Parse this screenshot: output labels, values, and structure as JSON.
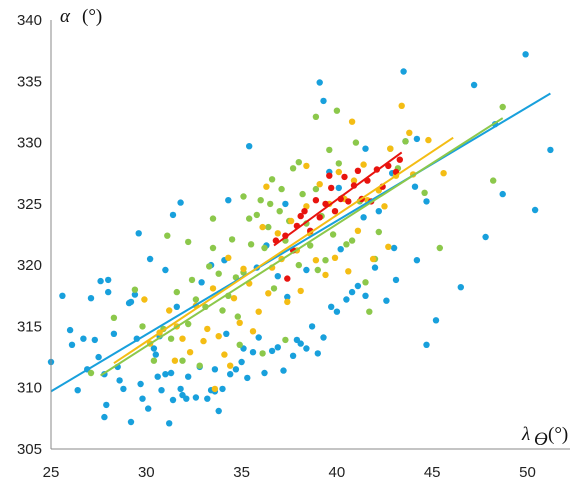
{
  "chart_data": {
    "type": "scatter",
    "title": "",
    "xlabel": "λ",
    "xlabel_sub": "ϴ",
    "xlabel_unit": "(°)",
    "ylabel": "α",
    "ylabel_unit": "(°)",
    "xlim": [
      25,
      52
    ],
    "ylim": [
      305,
      340
    ],
    "x_ticks": [
      "25",
      "30",
      "35",
      "40",
      "45",
      "50"
    ],
    "y_ticks": [
      "305",
      "310",
      "315",
      "320",
      "325",
      "330",
      "335",
      "340"
    ],
    "grid": false,
    "legend": "none",
    "series": [
      {
        "color": "#18a0dc",
        "trend": [
          [
            25.0,
            309.7
          ],
          [
            51.2,
            334.0
          ]
        ],
        "points": [
          [
            25.0,
            312.1
          ],
          [
            25.6,
            317.5
          ],
          [
            26.0,
            314.7
          ],
          [
            26.4,
            309.8
          ],
          [
            26.9,
            311.5
          ],
          [
            27.1,
            317.3
          ],
          [
            27.5,
            312.5
          ],
          [
            27.6,
            318.7
          ],
          [
            27.8,
            311.1
          ],
          [
            27.8,
            307.6
          ],
          [
            27.9,
            308.6
          ],
          [
            28.0,
            318.8
          ],
          [
            28.0,
            317.8
          ],
          [
            28.3,
            314.4
          ],
          [
            28.5,
            311.7
          ],
          [
            28.6,
            310.6
          ],
          [
            28.8,
            309.9
          ],
          [
            29.1,
            316.9
          ],
          [
            29.2,
            317.0
          ],
          [
            29.4,
            317.6
          ],
          [
            29.5,
            314.0
          ],
          [
            29.7,
            310.3
          ],
          [
            29.8,
            309.1
          ],
          [
            30.1,
            308.3
          ],
          [
            30.4,
            313.2
          ],
          [
            30.5,
            312.7
          ],
          [
            30.7,
            314.2
          ],
          [
            30.8,
            309.8
          ],
          [
            31.0,
            311.1
          ],
          [
            31.3,
            311.2
          ],
          [
            31.4,
            309.0
          ],
          [
            31.6,
            316.6
          ],
          [
            31.8,
            309.9
          ],
          [
            31.9,
            309.4
          ],
          [
            32.1,
            309.1
          ],
          [
            32.2,
            310.9
          ],
          [
            32.6,
            309.2
          ],
          [
            32.8,
            311.7
          ],
          [
            33.2,
            309.1
          ],
          [
            33.4,
            309.8
          ],
          [
            33.6,
            311.5
          ],
          [
            33.8,
            308.1
          ],
          [
            34.0,
            309.9
          ],
          [
            34.2,
            314.4
          ],
          [
            34.4,
            311.1
          ],
          [
            34.7,
            311.5
          ],
          [
            35.0,
            312.1
          ],
          [
            35.1,
            313.2
          ],
          [
            35.3,
            310.8
          ],
          [
            35.6,
            312.9
          ],
          [
            35.9,
            314.1
          ],
          [
            36.2,
            311.2
          ],
          [
            36.6,
            313.0
          ],
          [
            36.9,
            313.3
          ],
          [
            37.2,
            311.4
          ],
          [
            37.4,
            317.4
          ],
          [
            37.7,
            312.6
          ],
          [
            37.9,
            313.9
          ],
          [
            38.1,
            313.6
          ],
          [
            38.4,
            313.2
          ],
          [
            38.7,
            315.0
          ],
          [
            39.0,
            312.8
          ],
          [
            39.3,
            314.1
          ],
          [
            39.7,
            316.6
          ],
          [
            40.0,
            316.2
          ],
          [
            40.5,
            317.2
          ],
          [
            40.8,
            317.8
          ],
          [
            41.1,
            318.3
          ],
          [
            41.5,
            317.5
          ],
          [
            42.0,
            319.8
          ],
          [
            42.6,
            317.1
          ],
          [
            43.1,
            318.8
          ],
          [
            44.2,
            320.4
          ],
          [
            47.8,
            322.3
          ],
          [
            49.9,
            337.2
          ],
          [
            50.4,
            324.5
          ],
          [
            51.2,
            329.4
          ],
          [
            34.3,
            325.3
          ],
          [
            35.4,
            329.7
          ],
          [
            37.3,
            325.0
          ],
          [
            39.3,
            333.4
          ],
          [
            39.6,
            327.6
          ],
          [
            40.1,
            326.3
          ],
          [
            41.5,
            329.5
          ],
          [
            42.9,
            327.5
          ],
          [
            43.6,
            330.1
          ],
          [
            44.2,
            330.3
          ],
          [
            44.1,
            326.4
          ],
          [
            44.7,
            325.2
          ],
          [
            29.6,
            322.6
          ],
          [
            30.2,
            320.5
          ],
          [
            31.0,
            319.6
          ],
          [
            31.4,
            324.1
          ],
          [
            31.8,
            325.1
          ],
          [
            32.9,
            318.6
          ],
          [
            33.4,
            320.0
          ],
          [
            34.1,
            320.4
          ],
          [
            39.1,
            334.9
          ],
          [
            43.5,
            335.8
          ],
          [
            47.2,
            334.7
          ],
          [
            48.3,
            331.5
          ],
          [
            26.1,
            313.5
          ],
          [
            26.7,
            314.0
          ],
          [
            27.3,
            313.9
          ],
          [
            29.2,
            307.2
          ],
          [
            30.6,
            310.9
          ],
          [
            31.2,
            307.1
          ],
          [
            33.6,
            309.7
          ],
          [
            35.8,
            319.8
          ],
          [
            36.3,
            321.6
          ],
          [
            36.9,
            319.1
          ],
          [
            38.4,
            319.6
          ],
          [
            40.2,
            321.3
          ],
          [
            41.4,
            323.9
          ],
          [
            42.2,
            324.4
          ],
          [
            43.0,
            321.4
          ],
          [
            44.7,
            313.5
          ],
          [
            45.2,
            315.5
          ],
          [
            46.5,
            318.2
          ],
          [
            48.7,
            325.8
          ]
        ]
      },
      {
        "color": "#8cc84b",
        "trend": [
          [
            27.6,
            311.0
          ],
          [
            48.7,
            332.0
          ]
        ],
        "points": [
          [
            27.1,
            311.2
          ],
          [
            28.3,
            315.7
          ],
          [
            29.4,
            318.0
          ],
          [
            29.8,
            315.0
          ],
          [
            30.4,
            312.2
          ],
          [
            30.9,
            314.8
          ],
          [
            31.3,
            314.0
          ],
          [
            31.6,
            317.8
          ],
          [
            31.9,
            312.2
          ],
          [
            32.2,
            315.2
          ],
          [
            32.4,
            318.8
          ],
          [
            32.6,
            317.2
          ],
          [
            32.8,
            311.8
          ],
          [
            33.1,
            316.6
          ],
          [
            33.3,
            319.9
          ],
          [
            33.5,
            321.4
          ],
          [
            33.8,
            319.3
          ],
          [
            34.0,
            316.3
          ],
          [
            34.3,
            317.5
          ],
          [
            34.5,
            322.1
          ],
          [
            34.7,
            319.0
          ],
          [
            34.9,
            313.5
          ],
          [
            35.1,
            319.4
          ],
          [
            35.4,
            323.8
          ],
          [
            35.5,
            321.7
          ],
          [
            35.8,
            324.1
          ],
          [
            36.0,
            325.3
          ],
          [
            36.2,
            321.4
          ],
          [
            36.4,
            323.1
          ],
          [
            36.5,
            325.0
          ],
          [
            36.7,
            318.1
          ],
          [
            37.0,
            324.4
          ],
          [
            37.1,
            326.2
          ],
          [
            37.3,
            322.0
          ],
          [
            37.5,
            323.6
          ],
          [
            37.7,
            327.9
          ],
          [
            38.0,
            320.0
          ],
          [
            38.2,
            325.8
          ],
          [
            38.4,
            323.4
          ],
          [
            38.6,
            321.6
          ],
          [
            38.9,
            326.2
          ],
          [
            39.0,
            319.6
          ],
          [
            39.2,
            324.0
          ],
          [
            39.4,
            320.4
          ],
          [
            39.6,
            329.4
          ],
          [
            39.8,
            322.5
          ],
          [
            40.1,
            328.3
          ],
          [
            40.3,
            325.5
          ],
          [
            40.5,
            321.7
          ],
          [
            40.8,
            322.0
          ],
          [
            41.0,
            330.0
          ],
          [
            41.2,
            325.2
          ],
          [
            41.5,
            318.6
          ],
          [
            41.7,
            316.2
          ],
          [
            42.0,
            320.5
          ],
          [
            42.2,
            322.7
          ],
          [
            42.8,
            329.5
          ],
          [
            43.2,
            327.9
          ],
          [
            43.6,
            330.1
          ],
          [
            44.6,
            325.9
          ],
          [
            45.4,
            321.4
          ],
          [
            48.7,
            332.9
          ],
          [
            48.2,
            326.9
          ],
          [
            31.1,
            322.4
          ],
          [
            32.2,
            321.9
          ],
          [
            33.5,
            323.8
          ],
          [
            35.1,
            325.6
          ],
          [
            36.6,
            327.0
          ],
          [
            38.0,
            328.4
          ],
          [
            38.9,
            332.1
          ],
          [
            40.0,
            332.6
          ],
          [
            34.8,
            315.8
          ],
          [
            36.1,
            312.8
          ],
          [
            37.3,
            313.9
          ]
        ]
      },
      {
        "color": "#f4bd14",
        "trend": [
          [
            28.3,
            312.0
          ],
          [
            46.1,
            330.4
          ]
        ],
        "points": [
          [
            30.2,
            313.6
          ],
          [
            30.7,
            314.5
          ],
          [
            31.2,
            316.3
          ],
          [
            31.6,
            315.0
          ],
          [
            31.9,
            314.0
          ],
          [
            32.3,
            312.9
          ],
          [
            32.6,
            316.7
          ],
          [
            33.0,
            313.8
          ],
          [
            33.2,
            314.8
          ],
          [
            33.5,
            318.1
          ],
          [
            33.8,
            314.2
          ],
          [
            34.1,
            312.7
          ],
          [
            34.3,
            320.6
          ],
          [
            34.6,
            317.3
          ],
          [
            34.9,
            315.3
          ],
          [
            35.1,
            319.7
          ],
          [
            35.4,
            318.5
          ],
          [
            35.6,
            314.6
          ],
          [
            35.9,
            316.2
          ],
          [
            36.1,
            323.1
          ],
          [
            36.4,
            317.7
          ],
          [
            36.6,
            319.8
          ],
          [
            36.9,
            322.6
          ],
          [
            37.1,
            320.5
          ],
          [
            37.4,
            317.0
          ],
          [
            37.6,
            323.6
          ],
          [
            37.9,
            321.2
          ],
          [
            38.1,
            317.9
          ],
          [
            38.4,
            324.8
          ],
          [
            38.6,
            322.6
          ],
          [
            38.9,
            320.4
          ],
          [
            39.1,
            326.6
          ],
          [
            39.4,
            319.2
          ],
          [
            39.6,
            325.0
          ],
          [
            39.9,
            320.6
          ],
          [
            40.1,
            327.6
          ],
          [
            40.4,
            325.4
          ],
          [
            40.6,
            319.5
          ],
          [
            40.9,
            326.9
          ],
          [
            41.1,
            322.8
          ],
          [
            41.4,
            328.2
          ],
          [
            41.6,
            325.3
          ],
          [
            41.9,
            320.5
          ],
          [
            42.2,
            326.1
          ],
          [
            42.5,
            324.8
          ],
          [
            42.8,
            329.5
          ],
          [
            43.1,
            327.3
          ],
          [
            43.4,
            333.0
          ],
          [
            44.0,
            327.4
          ],
          [
            44.8,
            330.2
          ],
          [
            45.6,
            327.5
          ],
          [
            43.8,
            330.8
          ],
          [
            29.9,
            317.2
          ],
          [
            33.6,
            309.9
          ],
          [
            36.3,
            326.4
          ],
          [
            38.4,
            328.1
          ],
          [
            40.8,
            331.7
          ],
          [
            31.5,
            312.2
          ],
          [
            34.4,
            311.8
          ],
          [
            42.7,
            321.5
          ]
        ]
      },
      {
        "color": "#e8130e",
        "trend": [
          [
            36.7,
            321.6
          ],
          [
            43.4,
            329.2
          ]
        ],
        "points": [
          [
            36.8,
            322.0
          ],
          [
            37.3,
            322.4
          ],
          [
            37.7,
            321.2
          ],
          [
            37.9,
            323.2
          ],
          [
            38.3,
            324.4
          ],
          [
            38.6,
            322.8
          ],
          [
            38.9,
            325.3
          ],
          [
            39.1,
            323.9
          ],
          [
            39.4,
            325.0
          ],
          [
            39.7,
            326.3
          ],
          [
            39.9,
            324.4
          ],
          [
            40.2,
            325.4
          ],
          [
            40.4,
            327.2
          ],
          [
            40.6,
            325.2
          ],
          [
            40.9,
            326.5
          ],
          [
            41.1,
            327.7
          ],
          [
            41.3,
            325.4
          ],
          [
            41.6,
            326.9
          ],
          [
            41.8,
            325.2
          ],
          [
            42.1,
            327.8
          ],
          [
            42.4,
            326.4
          ],
          [
            42.7,
            328.1
          ],
          [
            43.1,
            327.6
          ],
          [
            43.3,
            328.6
          ],
          [
            38.1,
            324.0
          ],
          [
            37.4,
            318.9
          ],
          [
            39.6,
            327.3
          ]
        ]
      }
    ]
  }
}
